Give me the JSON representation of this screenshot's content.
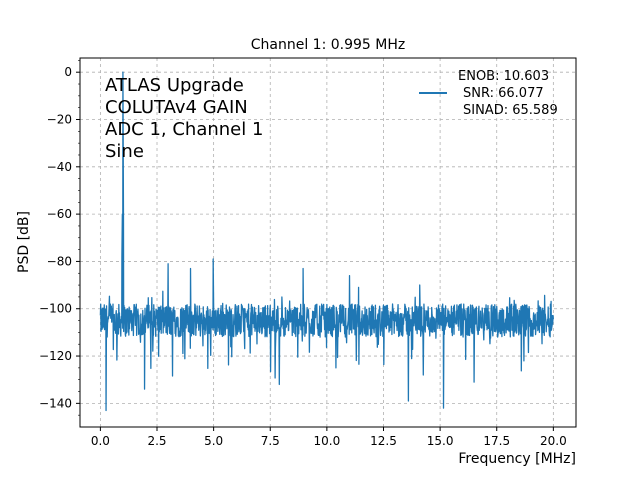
{
  "chart_data": {
    "type": "line",
    "title": "Channel 1: 0.995 MHz",
    "xlabel": "Frequency [MHz]",
    "ylabel": "PSD [dB]",
    "xlim": [
      -0.9,
      21.0
    ],
    "ylim": [
      -150,
      6
    ],
    "x_ticks": [
      0.0,
      2.5,
      5.0,
      7.5,
      10.0,
      12.5,
      15.0,
      17.5,
      20.0
    ],
    "x_tick_labels": [
      "0.0",
      "2.5",
      "5.0",
      "7.5",
      "10.0",
      "12.5",
      "15.0",
      "17.5",
      "20.0"
    ],
    "y_ticks": [
      0,
      -20,
      -40,
      -60,
      -80,
      -100,
      -120,
      -140
    ],
    "y_tick_labels": [
      "0",
      "−20",
      "−40",
      "−60",
      "−80",
      "−100",
      "−120",
      "−140"
    ],
    "grid": true,
    "grid_style": "dashed",
    "legend_position": "top-right",
    "legend": {
      "lines": [
        "ENOB: 10.603",
        "SNR: 66.077",
        "SINAD: 65.589"
      ]
    },
    "annotation": [
      "ATLAS Upgrade",
      "COLUTAv4 GAIN",
      "ADC 1, Channel 1",
      "Sine"
    ],
    "series": [
      {
        "color": "#1f77b4",
        "noise_floor_db": [
          -112,
          -98
        ],
        "noise_x_range": [
          0.0,
          20.0
        ],
        "peaks": [
          {
            "x": 0.995,
            "y": 0
          },
          {
            "x": 0.95,
            "y": -78
          },
          {
            "x": 2.99,
            "y": -81
          },
          {
            "x": 3.98,
            "y": -83
          },
          {
            "x": 4.98,
            "y": -79
          },
          {
            "x": 8.95,
            "y": -83
          },
          {
            "x": 11.0,
            "y": -86
          },
          {
            "x": 11.4,
            "y": -91
          },
          {
            "x": 14.1,
            "y": -90
          }
        ],
        "dips": [
          {
            "x": 0.25,
            "y": -143
          },
          {
            "x": 1.95,
            "y": -134
          },
          {
            "x": 7.9,
            "y": -132
          },
          {
            "x": 10.4,
            "y": -125
          },
          {
            "x": 13.6,
            "y": -139
          },
          {
            "x": 15.15,
            "y": -142
          },
          {
            "x": 16.5,
            "y": -131
          }
        ]
      }
    ]
  }
}
